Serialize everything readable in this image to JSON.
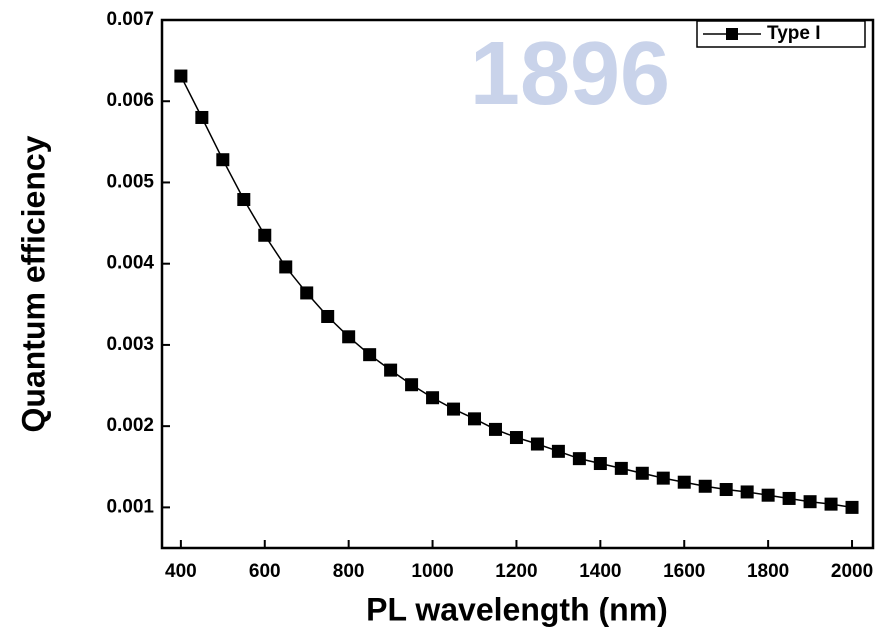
{
  "chart_data": {
    "type": "line",
    "xlabel": "PL wavelength (nm)",
    "ylabel": "Quantum efficiency",
    "watermark": "1896",
    "x": [
      400,
      450,
      500,
      550,
      600,
      650,
      700,
      750,
      800,
      850,
      900,
      950,
      1000,
      1050,
      1100,
      1150,
      1200,
      1250,
      1300,
      1350,
      1400,
      1450,
      1500,
      1550,
      1600,
      1650,
      1700,
      1750,
      1800,
      1850,
      1900,
      1950,
      2000
    ],
    "series": [
      {
        "name": "Type I",
        "color": "#000000",
        "values": [
          0.00631,
          0.0058,
          0.00528,
          0.00479,
          0.00435,
          0.00396,
          0.00364,
          0.00335,
          0.0031,
          0.00288,
          0.00269,
          0.00251,
          0.00235,
          0.00221,
          0.00209,
          0.00196,
          0.00186,
          0.00178,
          0.00169,
          0.0016,
          0.00154,
          0.00148,
          0.00142,
          0.00136,
          0.00131,
          0.00126,
          0.00122,
          0.00119,
          0.00115,
          0.00111,
          0.00107,
          0.00104,
          0.001
        ]
      }
    ],
    "xlim": [
      355,
      2050
    ],
    "ylim": [
      0.0005,
      0.007
    ],
    "xticks": [
      400,
      600,
      800,
      1000,
      1200,
      1400,
      1600,
      1800,
      2000
    ],
    "yticks": [
      0.001,
      0.002,
      0.003,
      0.004,
      0.005,
      0.006,
      0.007
    ],
    "legend": "top-right"
  }
}
